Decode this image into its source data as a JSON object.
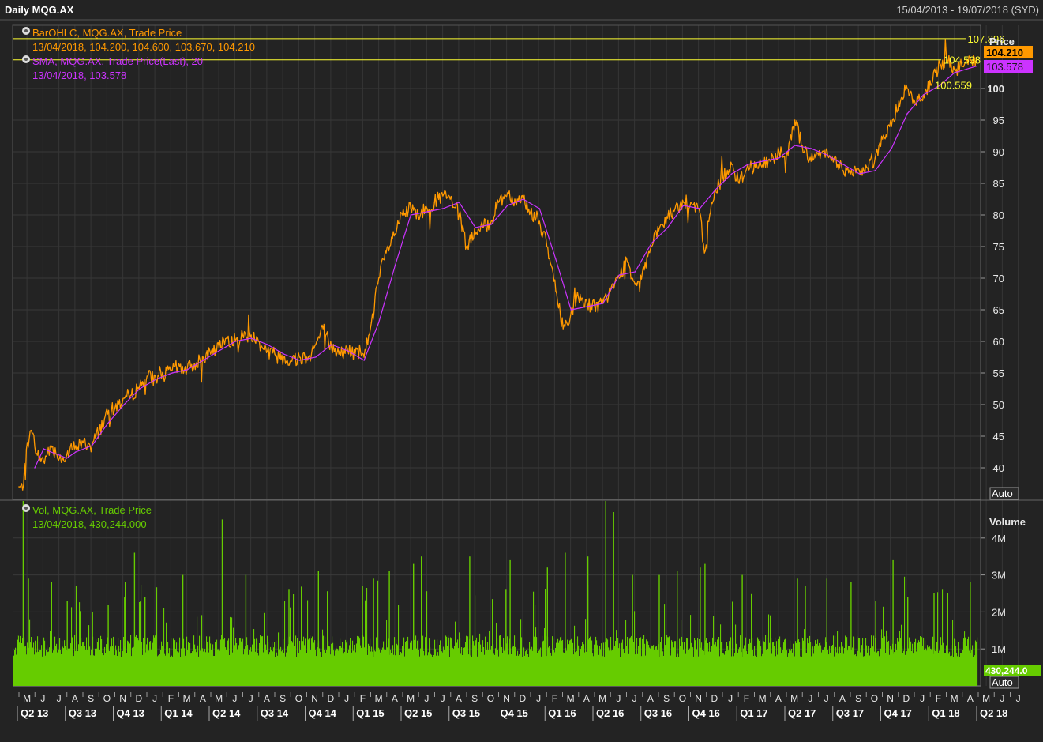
{
  "header": {
    "title": "Daily MQG.AX",
    "date_range": "15/04/2013 - 19/07/2018 (SYD)"
  },
  "price_panel": {
    "axis_title": "Price",
    "auto_label": "Auto",
    "legend": {
      "ohlc_name": "BarOHLC, MQG.AX, Trade Price",
      "ohlc_values": "13/04/2018, 104.200, 104.600, 103.670, 104.210",
      "sma_name": "SMA, MQG.AX, Trade Price(Last),  20",
      "sma_values": "13/04/2018, 103.578"
    },
    "last_price_tag": "104.210",
    "sma_tag": "103.578",
    "hlines": [
      {
        "label": "107.896",
        "value": 107.896
      },
      {
        "label": "104.538",
        "value": 104.538
      },
      {
        "label": "100.559",
        "value": 100.559
      }
    ]
  },
  "volume_panel": {
    "axis_title": "Volume",
    "auto_label": "Auto",
    "legend": {
      "name": "Vol, MQG.AX, Trade Price",
      "values": "13/04/2018, 430,244.000"
    },
    "last_tag": "430,244.0"
  },
  "colors": {
    "background": "#232323",
    "grid": "#3c3c3c",
    "price": "#ff9900",
    "sma": "#cc33ff",
    "volume": "#66cc00",
    "hline": "#ffff33",
    "axis_text": "#e8e8e8"
  },
  "chart_data": [
    {
      "type": "line",
      "title": "Daily MQG.AX",
      "series": [
        {
          "name": "BarOHLC, MQG.AX, Trade Price",
          "x": [
            "2013-04-15",
            "2013-04-22",
            "2013-05-01",
            "2013-05-10",
            "2013-05-20",
            "2013-06-01",
            "2013-06-15",
            "2013-07-01",
            "2013-07-15",
            "2013-08-01",
            "2013-08-15",
            "2013-09-01",
            "2013-09-15",
            "2013-10-01",
            "2013-10-15",
            "2013-11-01",
            "2013-11-15",
            "2013-12-01",
            "2013-12-15",
            "2014-01-01",
            "2014-01-15",
            "2014-02-01",
            "2014-02-15",
            "2014-03-01",
            "2014-03-15",
            "2014-04-01",
            "2014-04-15",
            "2014-05-01",
            "2014-05-15",
            "2014-06-01",
            "2014-06-15",
            "2014-07-01",
            "2014-07-15",
            "2014-08-01",
            "2014-08-15",
            "2014-09-01",
            "2014-09-15",
            "2014-10-01",
            "2014-10-15",
            "2014-11-01",
            "2014-11-15",
            "2014-12-01",
            "2014-12-15",
            "2015-01-01",
            "2015-01-15",
            "2015-02-01",
            "2015-02-15",
            "2015-03-01",
            "2015-03-15",
            "2015-04-01",
            "2015-04-15",
            "2015-05-01",
            "2015-05-15",
            "2015-06-01",
            "2015-06-15",
            "2015-07-01",
            "2015-07-15",
            "2015-08-01",
            "2015-08-15",
            "2015-09-01",
            "2015-09-15",
            "2015-10-01",
            "2015-10-15",
            "2015-11-01",
            "2015-11-15",
            "2015-12-01",
            "2015-12-15",
            "2016-01-01",
            "2016-01-15",
            "2016-02-01",
            "2016-02-15",
            "2016-03-01",
            "2016-03-15",
            "2016-04-01",
            "2016-04-15",
            "2016-05-01",
            "2016-05-15",
            "2016-06-01",
            "2016-06-15",
            "2016-07-01",
            "2016-07-15",
            "2016-08-01",
            "2016-08-15",
            "2016-09-01",
            "2016-09-15",
            "2016-10-01",
            "2016-10-15",
            "2016-11-01",
            "2016-11-10",
            "2016-11-20",
            "2016-12-01",
            "2016-12-15",
            "2017-01-01",
            "2017-01-15",
            "2017-02-01",
            "2017-02-15",
            "2017-03-01",
            "2017-03-15",
            "2017-04-01",
            "2017-04-15",
            "2017-05-01",
            "2017-05-15",
            "2017-06-01",
            "2017-06-15",
            "2017-07-01",
            "2017-07-15",
            "2017-08-01",
            "2017-08-15",
            "2017-09-01",
            "2017-09-15",
            "2017-10-01",
            "2017-10-15",
            "2017-11-01",
            "2017-11-15",
            "2017-12-01",
            "2017-12-15",
            "2018-01-01",
            "2018-01-15",
            "2018-02-01",
            "2018-02-15",
            "2018-03-01",
            "2018-03-15",
            "2018-04-01",
            "2018-04-13"
          ],
          "values": [
            37.0,
            36.5,
            44.0,
            45.5,
            42.0,
            41.0,
            43.5,
            41.5,
            42.0,
            43.5,
            44.0,
            43.5,
            46.0,
            48.5,
            49.5,
            51.0,
            51.5,
            53.0,
            54.5,
            54.0,
            54.5,
            55.5,
            56.0,
            55.5,
            56.5,
            57.5,
            58.0,
            59.0,
            60.5,
            60.0,
            61.0,
            61.0,
            60.0,
            58.5,
            58.0,
            57.5,
            57.0,
            57.5,
            57.5,
            59.5,
            62.0,
            59.0,
            58.0,
            58.5,
            58.0,
            57.5,
            63.0,
            70.0,
            74.0,
            77.0,
            80.0,
            81.0,
            80.0,
            81.0,
            82.0,
            83.0,
            82.5,
            80.0,
            75.0,
            77.0,
            78.0,
            79.0,
            82.0,
            83.5,
            82.5,
            82.5,
            80.5,
            79.0,
            75.0,
            68.0,
            62.0,
            64.5,
            67.0,
            66.0,
            65.5,
            66.0,
            68.0,
            70.0,
            73.0,
            69.0,
            71.0,
            75.0,
            77.5,
            79.5,
            81.0,
            82.0,
            82.0,
            80.5,
            74.0,
            80.0,
            84.0,
            86.0,
            88.0,
            85.0,
            88.0,
            87.5,
            88.0,
            88.5,
            90.0,
            89.5,
            95.0,
            91.0,
            88.5,
            89.5,
            90.5,
            89.0,
            87.0,
            86.5,
            87.0,
            87.5,
            89.0,
            92.0,
            94.0,
            98.0,
            100.0,
            98.0,
            99.0,
            100.5,
            104.0,
            104.5,
            103.0,
            103.5,
            104.5,
            104.21
          ]
        },
        {
          "name": "SMA, MQG.AX, Trade Price(Last),  20",
          "x": [
            "2013-05-15",
            "2013-06-01",
            "2013-06-15",
            "2013-07-01",
            "2013-07-15",
            "2013-08-01",
            "2013-09-01",
            "2013-10-01",
            "2013-11-01",
            "2013-12-01",
            "2014-01-01",
            "2014-02-01",
            "2014-03-01",
            "2014-04-01",
            "2014-05-01",
            "2014-06-01",
            "2014-07-01",
            "2014-08-01",
            "2014-09-01",
            "2014-10-01",
            "2014-11-01",
            "2014-12-01",
            "2015-01-01",
            "2015-02-01",
            "2015-03-01",
            "2015-04-01",
            "2015-05-01",
            "2015-06-01",
            "2015-07-01",
            "2015-08-01",
            "2015-09-01",
            "2015-10-01",
            "2015-11-01",
            "2015-12-01",
            "2016-01-01",
            "2016-02-01",
            "2016-03-01",
            "2016-04-01",
            "2016-05-01",
            "2016-06-01",
            "2016-07-01",
            "2016-08-01",
            "2016-09-01",
            "2016-10-01",
            "2016-11-01",
            "2016-12-01",
            "2017-01-01",
            "2017-02-01",
            "2017-03-01",
            "2017-04-01",
            "2017-05-01",
            "2017-06-01",
            "2017-07-01",
            "2017-08-01",
            "2017-09-01",
            "2017-10-01",
            "2017-11-01",
            "2017-12-01",
            "2018-01-01",
            "2018-02-01",
            "2018-03-01",
            "2018-04-13"
          ],
          "values": [
            40.0,
            43.0,
            42.5,
            42.0,
            41.5,
            42.5,
            43.5,
            47.0,
            50.0,
            52.5,
            54.0,
            55.0,
            55.5,
            57.0,
            58.5,
            60.0,
            60.5,
            59.5,
            58.0,
            57.0,
            57.5,
            59.5,
            58.5,
            57.0,
            63.0,
            72.0,
            80.0,
            80.5,
            81.0,
            82.0,
            78.0,
            78.5,
            81.5,
            82.5,
            81.0,
            73.0,
            65.0,
            65.5,
            66.0,
            70.5,
            71.0,
            75.5,
            78.0,
            81.5,
            81.0,
            84.0,
            86.5,
            88.0,
            88.5,
            89.0,
            91.0,
            90.5,
            89.5,
            88.0,
            86.5,
            87.0,
            90.5,
            96.0,
            99.0,
            100.5,
            102.5,
            103.578
          ]
        }
      ],
      "ylabel": "Price",
      "ylim": [
        35,
        110
      ],
      "yticks": [
        40,
        45,
        50,
        55,
        60,
        65,
        70,
        75,
        80,
        85,
        90,
        95,
        100
      ],
      "xlabel": "",
      "month_ticks": [
        "M",
        "J",
        "J",
        "A",
        "S",
        "O",
        "N",
        "D",
        "J",
        "F",
        "M",
        "A",
        "M",
        "J",
        "J",
        "A",
        "S",
        "O",
        "N",
        "D",
        "J",
        "F",
        "M",
        "A",
        "M",
        "J",
        "J",
        "A",
        "S",
        "O",
        "N",
        "D",
        "J",
        "F",
        "M",
        "A",
        "M",
        "J",
        "J",
        "A",
        "S",
        "O",
        "N",
        "D",
        "J",
        "F",
        "M",
        "A",
        "M",
        "J",
        "J",
        "A",
        "S",
        "O",
        "N",
        "D",
        "J",
        "F",
        "M",
        "A",
        "M",
        "J",
        "J"
      ],
      "quarter_labels": [
        "Q2 13",
        "Q3 13",
        "Q4 13",
        "Q1 14",
        "Q2 14",
        "Q3 14",
        "Q4 14",
        "Q1 15",
        "Q2 15",
        "Q3 15",
        "Q4 15",
        "Q1 16",
        "Q2 16",
        "Q3 16",
        "Q4 16",
        "Q1 17",
        "Q2 17",
        "Q3 17",
        "Q4 17",
        "Q1 18",
        "Q2 18"
      ],
      "grid": true
    },
    {
      "type": "bar",
      "title": "Vol, MQG.AX, Trade Price",
      "ylabel": "Volume",
      "ylim": [
        0,
        5000000
      ],
      "yticks": [
        {
          "label": "1M",
          "value": 1000000
        },
        {
          "label": "2M",
          "value": 2000000
        },
        {
          "label": "3M",
          "value": 3000000
        },
        {
          "label": "4M",
          "value": 4000000
        }
      ],
      "typical_volume": 1100000,
      "last_value": 430244,
      "spikes": [
        {
          "x": "2013-04-22",
          "value": 5000000
        },
        {
          "x": "2013-05-02",
          "value": 2900000
        },
        {
          "x": "2013-06-15",
          "value": 2800000
        },
        {
          "x": "2013-07-15",
          "value": 2300000
        },
        {
          "x": "2013-08-01",
          "value": 2700000
        },
        {
          "x": "2013-09-01",
          "value": 2000000
        },
        {
          "x": "2013-10-01",
          "value": 2200000
        },
        {
          "x": "2013-11-01",
          "value": 2400000
        },
        {
          "x": "2013-11-20",
          "value": 3600000
        },
        {
          "x": "2013-12-10",
          "value": 2400000
        },
        {
          "x": "2014-02-20",
          "value": 3000000
        },
        {
          "x": "2014-05-06",
          "value": 4500000
        },
        {
          "x": "2014-06-20",
          "value": 3000000
        },
        {
          "x": "2014-09-10",
          "value": 2600000
        },
        {
          "x": "2014-11-05",
          "value": 3100000
        },
        {
          "x": "2015-01-28",
          "value": 2700000
        },
        {
          "x": "2015-02-18",
          "value": 2900000
        },
        {
          "x": "2015-03-20",
          "value": 3100000
        },
        {
          "x": "2015-05-05",
          "value": 3300000
        },
        {
          "x": "2015-05-20",
          "value": 3500000
        },
        {
          "x": "2015-08-20",
          "value": 3500000
        },
        {
          "x": "2015-10-28",
          "value": 2600000
        },
        {
          "x": "2015-11-05",
          "value": 3400000
        },
        {
          "x": "2016-01-15",
          "value": 3200000
        },
        {
          "x": "2016-02-18",
          "value": 3600000
        },
        {
          "x": "2016-04-01",
          "value": 3500000
        },
        {
          "x": "2016-05-05",
          "value": 5000000
        },
        {
          "x": "2016-05-20",
          "value": 4700000
        },
        {
          "x": "2016-06-25",
          "value": 3000000
        },
        {
          "x": "2016-08-15",
          "value": 3000000
        },
        {
          "x": "2016-09-18",
          "value": 3100000
        },
        {
          "x": "2016-11-01",
          "value": 3200000
        },
        {
          "x": "2016-11-10",
          "value": 3300000
        },
        {
          "x": "2017-01-20",
          "value": 3000000
        },
        {
          "x": "2017-05-05",
          "value": 2900000
        },
        {
          "x": "2017-05-20",
          "value": 2700000
        },
        {
          "x": "2017-06-30",
          "value": 2900000
        },
        {
          "x": "2017-08-15",
          "value": 2800000
        },
        {
          "x": "2017-10-01",
          "value": 2300000
        },
        {
          "x": "2017-11-03",
          "value": 3400000
        },
        {
          "x": "2017-12-01",
          "value": 2400000
        },
        {
          "x": "2018-01-20",
          "value": 2500000
        },
        {
          "x": "2018-02-15",
          "value": 2500000
        },
        {
          "x": "2018-03-30",
          "value": 2800000
        }
      ],
      "grid": true
    }
  ]
}
